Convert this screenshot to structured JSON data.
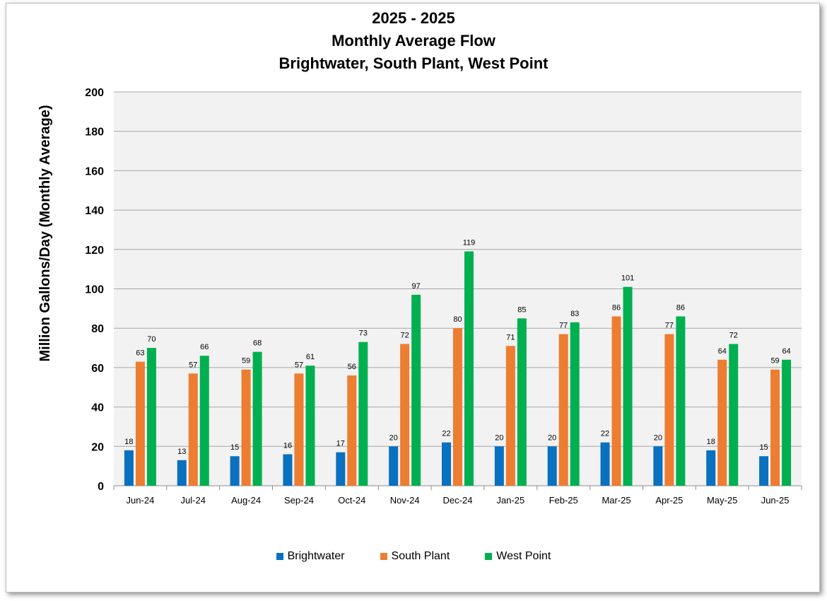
{
  "chart_data": {
    "type": "bar",
    "title": [
      "2025 - 2025",
      "Monthly Average Flow",
      "Brightwater, South Plant, West Point"
    ],
    "xlabel": "",
    "ylabel": "Million Gallons/Day (Monthly Average)",
    "ylim": [
      0,
      200
    ],
    "yticks": [
      0,
      20,
      40,
      60,
      80,
      100,
      120,
      140,
      160,
      180,
      200
    ],
    "grid": true,
    "legend_position": "bottom",
    "categories": [
      "Jun-24",
      "Jul-24",
      "Aug-24",
      "Sep-24",
      "Oct-24",
      "Nov-24",
      "Dec-24",
      "Jan-25",
      "Feb-25",
      "Mar-25",
      "Apr-25",
      "May-25",
      "Jun-25"
    ],
    "series": [
      {
        "name": "Brightwater",
        "color": "#0a70c0",
        "values": [
          18,
          13,
          15,
          16,
          17,
          20,
          22,
          20,
          20,
          22,
          20,
          18,
          15
        ],
        "labels": [
          "18",
          "13",
          "15",
          "16",
          "17",
          "20",
          "22",
          "20",
          "20",
          "22",
          "20",
          "18",
          "15"
        ]
      },
      {
        "name": "South Plant",
        "color": "#ed7d31",
        "values": [
          63,
          57,
          59,
          57,
          56,
          72,
          80,
          71,
          77,
          86,
          77,
          64,
          59
        ],
        "labels": [
          "63",
          "57",
          "59",
          "57",
          "56",
          "72",
          "80",
          "71",
          "77",
          "86",
          "77",
          "64",
          "59"
        ]
      },
      {
        "name": "West Point",
        "color": "#00b050",
        "values": [
          70,
          66,
          68,
          61,
          73,
          97,
          119,
          85,
          83,
          101,
          86,
          72,
          64
        ],
        "labels": [
          "70",
          "66",
          "68",
          "61",
          "73",
          "97",
          "119",
          "85",
          "83",
          "101",
          "86",
          "72",
          "64"
        ]
      }
    ]
  }
}
